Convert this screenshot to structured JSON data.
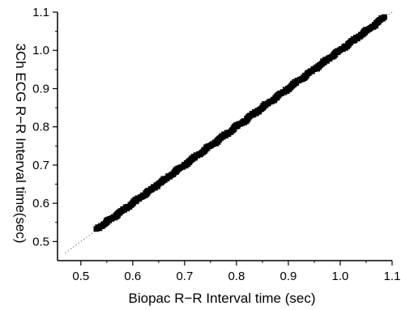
{
  "chart_data": {
    "type": "scatter",
    "title": "",
    "xlabel": "Biopac R−R Interval time (sec)",
    "ylabel": "3Ch ECG R−R Interval time(sec)",
    "xlim": [
      0.455,
      1.1
    ],
    "ylim": [
      0.45,
      1.1
    ],
    "x_ticks": [
      "0.5",
      "0.6",
      "0.7",
      "0.8",
      "0.9",
      "1.0",
      "1.1"
    ],
    "y_ticks": [
      "0.5",
      "0.6",
      "0.7",
      "0.8",
      "0.9",
      "1.0",
      "1.1"
    ],
    "grid": false,
    "legend": "none",
    "marker_color": "#000000",
    "series": [
      {
        "marker": "square",
        "points": [
          {
            "x": 0.53,
            "y": 0.533
          },
          {
            "x": 0.548,
            "y": 0.549
          },
          {
            "x": 0.56,
            "y": 0.561
          },
          {
            "x": 0.575,
            "y": 0.575
          },
          {
            "x": 0.59,
            "y": 0.591
          },
          {
            "x": 0.605,
            "y": 0.605
          },
          {
            "x": 0.62,
            "y": 0.621
          },
          {
            "x": 0.635,
            "y": 0.635
          },
          {
            "x": 0.65,
            "y": 0.651
          },
          {
            "x": 0.665,
            "y": 0.665
          },
          {
            "x": 0.68,
            "y": 0.681
          },
          {
            "x": 0.695,
            "y": 0.695
          },
          {
            "x": 0.71,
            "y": 0.711
          },
          {
            "x": 0.725,
            "y": 0.725
          },
          {
            "x": 0.74,
            "y": 0.741
          },
          {
            "x": 0.755,
            "y": 0.755
          },
          {
            "x": 0.77,
            "y": 0.771
          },
          {
            "x": 0.785,
            "y": 0.785
          },
          {
            "x": 0.8,
            "y": 0.801
          },
          {
            "x": 0.815,
            "y": 0.815
          },
          {
            "x": 0.83,
            "y": 0.831
          },
          {
            "x": 0.845,
            "y": 0.845
          },
          {
            "x": 0.86,
            "y": 0.861
          },
          {
            "x": 0.875,
            "y": 0.875
          },
          {
            "x": 0.89,
            "y": 0.891
          },
          {
            "x": 0.905,
            "y": 0.905
          },
          {
            "x": 0.92,
            "y": 0.921
          },
          {
            "x": 0.935,
            "y": 0.935
          },
          {
            "x": 0.95,
            "y": 0.951
          },
          {
            "x": 0.965,
            "y": 0.965
          },
          {
            "x": 0.98,
            "y": 0.981
          },
          {
            "x": 0.995,
            "y": 0.995
          },
          {
            "x": 1.01,
            "y": 1.011
          },
          {
            "x": 1.025,
            "y": 1.025
          },
          {
            "x": 1.04,
            "y": 1.041
          },
          {
            "x": 1.055,
            "y": 1.055
          },
          {
            "x": 1.07,
            "y": 1.071
          },
          {
            "x": 1.085,
            "y": 1.087
          }
        ]
      }
    ],
    "reference_line": {
      "x": [
        0.47,
        1.1
      ],
      "y": [
        0.47,
        1.1
      ]
    }
  }
}
